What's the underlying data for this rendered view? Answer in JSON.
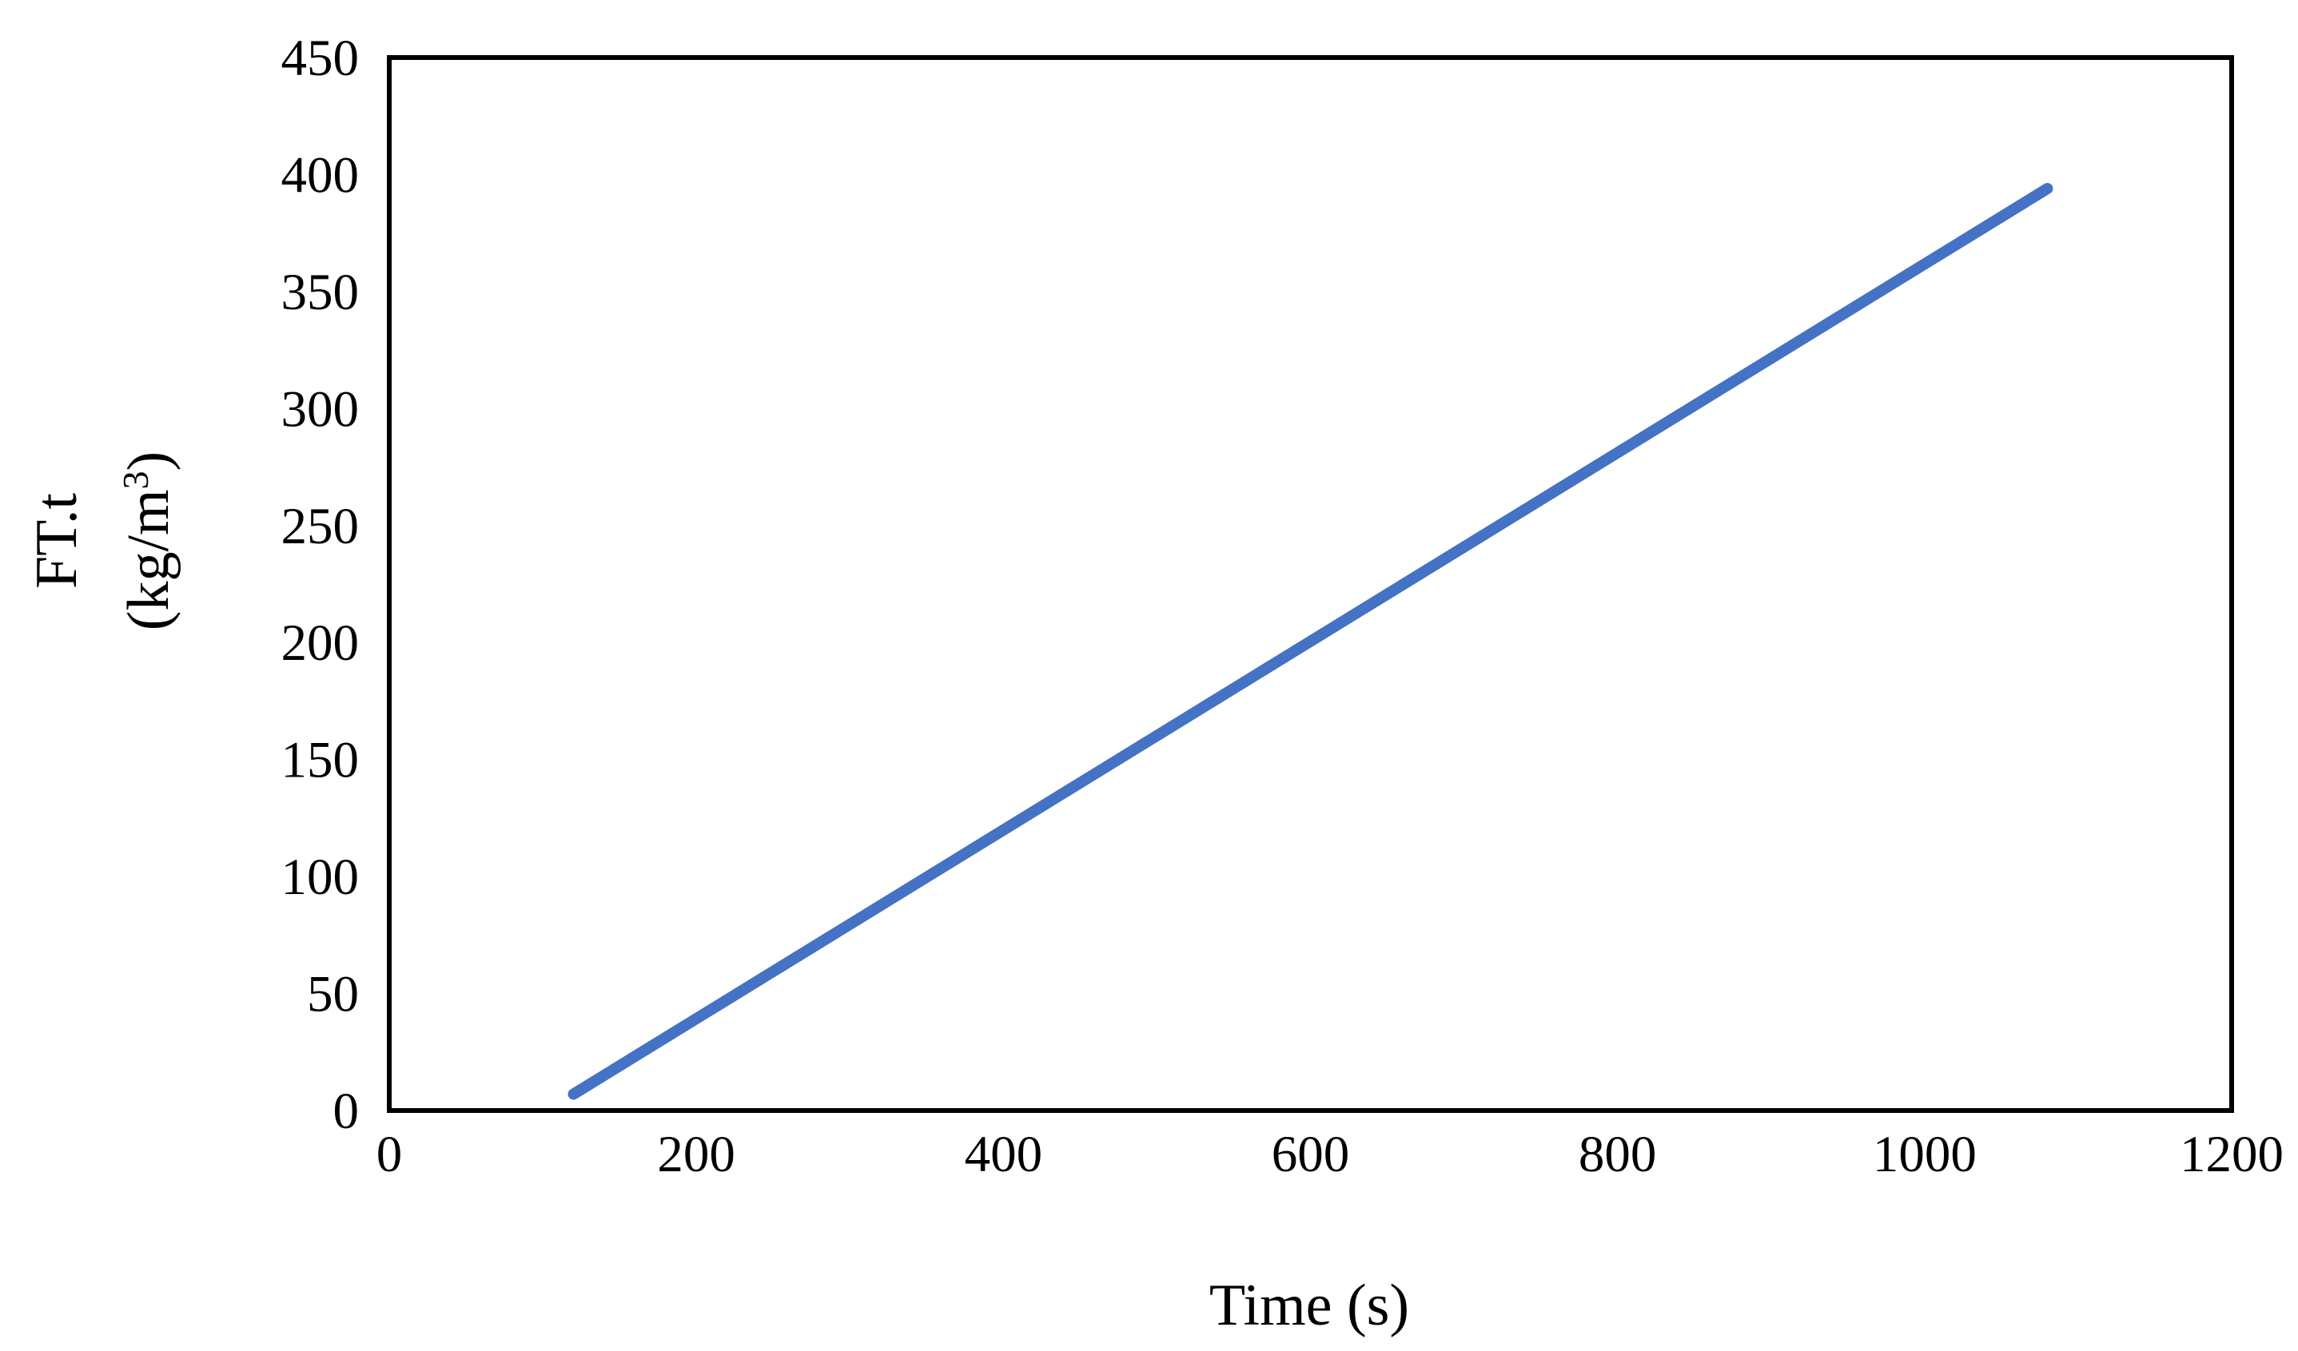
{
  "chart_data": {
    "type": "line",
    "title": "",
    "xlabel": "Time (s)",
    "ylabel_line1": "FT.t",
    "ylabel_line2_main": "(kg/m",
    "ylabel_line2_sup": "3",
    "ylabel_line2_end": ")",
    "xlim": [
      0,
      1200
    ],
    "ylim": [
      0,
      450
    ],
    "x_ticks": [
      "0",
      "200",
      "400",
      "600",
      "800",
      "1000",
      "1200"
    ],
    "y_ticks": [
      "0",
      "50",
      "100",
      "150",
      "200",
      "250",
      "300",
      "350",
      "400",
      "450"
    ],
    "grid": false,
    "legend": "none",
    "series": [
      {
        "color": "#4472C4",
        "x": [
          120,
          1080
        ],
        "y": [
          7,
          394
        ]
      }
    ]
  }
}
